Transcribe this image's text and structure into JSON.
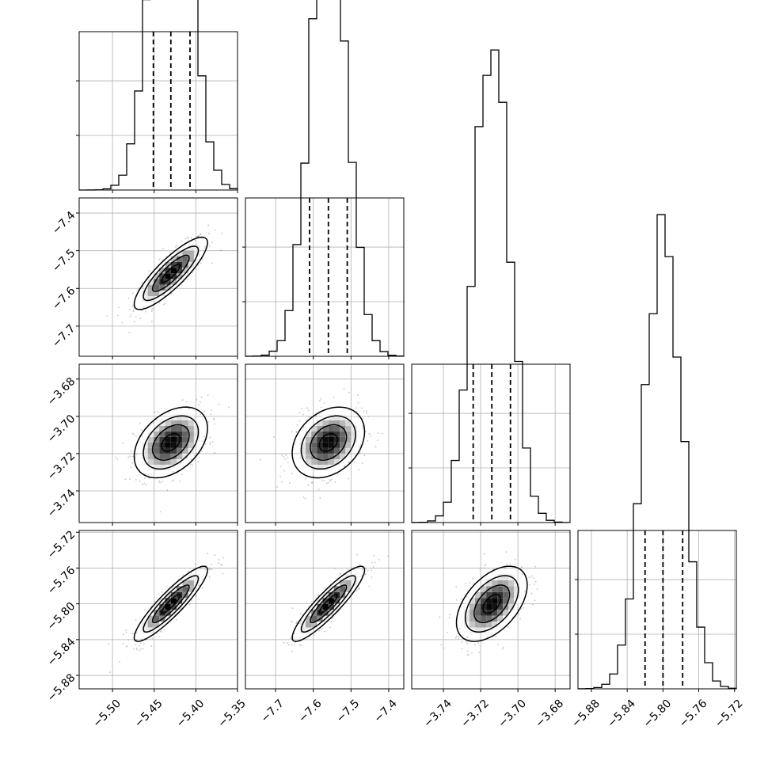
{
  "chart_data": {
    "type": "corner",
    "grid": true,
    "colors": {
      "line": "#000000",
      "grid": "#b0b0b0",
      "points": "#808080"
    },
    "parameters": [
      {
        "range": [
          -5.54,
          -5.35
        ],
        "ticks": [
          -5.5,
          -5.45,
          -5.4,
          -5.35
        ],
        "tick_labels": [
          "−5.50",
          "−5.45",
          "−5.40",
          "−5.35"
        ],
        "median": -5.43,
        "lo": -5.451,
        "hi": -5.407,
        "mean": -5.43,
        "sd": 0.022
      },
      {
        "range": [
          -7.78,
          -7.36
        ],
        "ticks": [
          -7.7,
          -7.6,
          -7.5,
          -7.4
        ],
        "tick_labels": [
          "−7.7",
          "−7.6",
          "−7.5",
          "−7.4"
        ],
        "median": -7.56,
        "lo": -7.61,
        "hi": -7.51,
        "mean": -7.56,
        "sd": 0.048
      },
      {
        "range": [
          -3.757,
          -3.672
        ],
        "ticks": [
          -3.74,
          -3.72,
          -3.7,
          -3.68
        ],
        "tick_labels": [
          "−3.74",
          "−3.72",
          "−3.70",
          "−3.68"
        ],
        "median": -3.714,
        "lo": -3.724,
        "hi": -3.704,
        "mean": -3.714,
        "sd": 0.0095
      },
      {
        "range": [
          -5.895,
          -5.718
        ],
        "ticks": [
          -5.88,
          -5.84,
          -5.8,
          -5.76,
          -5.72
        ],
        "tick_labels": [
          "−5.88",
          "−5.84",
          "−5.80",
          "−5.76",
          "−5.72"
        ],
        "median": -5.8,
        "lo": -5.82,
        "hi": -5.778,
        "mean": -5.8,
        "sd": 0.021
      }
    ],
    "correlations": {
      "1-0": 0.85,
      "2-0": 0.4,
      "2-1": 0.3,
      "3-0": 0.9,
      "3-1": 0.9,
      "3-2": 0.5
    },
    "diag_bins": 20,
    "diag_ymax": 0.058,
    "diag_yticks": [
      0.0,
      0.02,
      0.04
    ],
    "quantiles": [
      0.16,
      0.5,
      0.84
    ],
    "contour_levels_sigma": [
      0.5,
      1.0,
      1.5,
      2.0
    ]
  }
}
